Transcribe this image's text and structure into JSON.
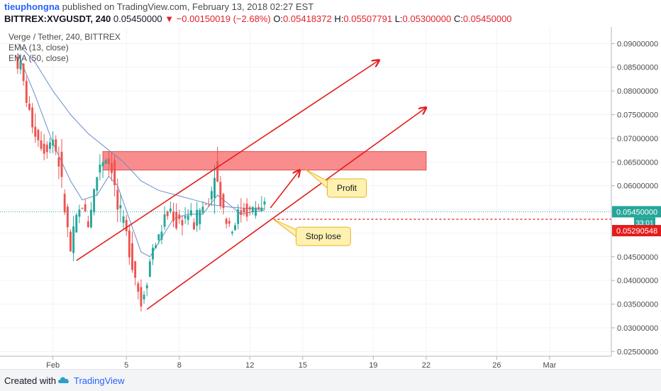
{
  "header": {
    "author": "tieuphongna",
    "published_text": "published on TradingView.com, February 13, 2018 02:27 EST",
    "symbol": "BITTREX:XVGUSDT, 240",
    "last": "0.05450000",
    "change_icon": "triangle-down-icon",
    "change": "−0.00150019 (−2.68%)",
    "o_label": "O:",
    "o_value": "0.05418372",
    "h_label": "H:",
    "h_value": "0.05507791",
    "l_label": "L:",
    "l_value": "0.05300000",
    "c_label": "C:",
    "c_value": "0.05450000"
  },
  "legend": {
    "title": "Verge / Tether, 240, BITTREX",
    "ema13": "EMA (13, close)",
    "ema50": "EMA (50, close)"
  },
  "price_tags": {
    "last": "0.05450000",
    "countdown": "33:01",
    "stop": "0.05290548"
  },
  "annotations": {
    "profit": "Profit",
    "stop": "Stop lose"
  },
  "footer": {
    "created": "Created with",
    "brand": "TradingView",
    "logo_icon": "tradingview-cloud-icon"
  },
  "colors": {
    "up": "#26a69a",
    "down": "#ef5350",
    "trend": "#e51b1b",
    "zone": "#f87878",
    "ema": "#6b8fc7",
    "note_bg": "#fff1b0",
    "note_border": "#e6b325"
  },
  "chart_data": {
    "type": "candlestick",
    "symbol": "BITTREX:XVGUSDT",
    "interval": "240",
    "ylim": [
      0.024,
      0.0935
    ],
    "yticks": [
      0.025,
      0.03,
      0.035,
      0.04,
      0.045,
      0.05,
      0.055,
      0.06,
      0.065,
      0.07,
      0.075,
      0.08,
      0.085,
      0.09
    ],
    "ytick_labels": [
      "0.02500000",
      "0.03000000",
      "0.03500000",
      "0.04000000",
      "0.04500000",
      "0.05000000",
      "0.05500000",
      "0.06000000",
      "0.06500000",
      "0.07000000",
      "0.07500000",
      "0.08000000",
      "0.08500000",
      "0.09000000"
    ],
    "xlim": [
      -6,
      202
    ],
    "xticks": [
      {
        "bar": 12,
        "label": "Feb"
      },
      {
        "bar": 37,
        "label": "5"
      },
      {
        "bar": 55,
        "label": "8"
      },
      {
        "bar": 79,
        "label": "12"
      },
      {
        "bar": 97,
        "label": "15"
      },
      {
        "bar": 121,
        "label": "19"
      },
      {
        "bar": 139,
        "label": "22"
      },
      {
        "bar": 163,
        "label": "26"
      },
      {
        "bar": 181,
        "label": "Mar"
      }
    ],
    "key_points": [
      [
        0,
        0.087
      ],
      [
        2,
        0.085
      ],
      [
        5,
        0.075
      ],
      [
        8,
        0.07
      ],
      [
        10,
        0.068
      ],
      [
        13,
        0.07
      ],
      [
        15,
        0.065
      ],
      [
        17,
        0.055
      ],
      [
        19,
        0.046
      ],
      [
        21,
        0.053
      ],
      [
        23,
        0.056
      ],
      [
        25,
        0.052
      ],
      [
        27,
        0.059
      ],
      [
        29,
        0.065
      ],
      [
        31,
        0.066
      ],
      [
        33,
        0.064
      ],
      [
        35,
        0.055
      ],
      [
        37,
        0.052
      ],
      [
        39,
        0.047
      ],
      [
        41,
        0.041
      ],
      [
        43,
        0.035
      ],
      [
        45,
        0.041
      ],
      [
        47,
        0.047
      ],
      [
        49,
        0.049
      ],
      [
        51,
        0.053
      ],
      [
        53,
        0.055
      ],
      [
        55,
        0.052
      ],
      [
        57,
        0.053
      ],
      [
        59,
        0.054
      ],
      [
        61,
        0.052
      ],
      [
        63,
        0.055
      ],
      [
        65,
        0.056
      ],
      [
        67,
        0.059
      ],
      [
        68,
        0.064
      ],
      [
        70,
        0.057
      ],
      [
        72,
        0.053
      ],
      [
        74,
        0.051
      ],
      [
        76,
        0.054
      ],
      [
        78,
        0.055
      ],
      [
        80,
        0.0545
      ],
      [
        82,
        0.0555
      ],
      [
        84,
        0.0545
      ]
    ],
    "ema": [
      {
        "name": "EMA (13, close)",
        "points": [
          [
            0,
            0.088
          ],
          [
            6,
            0.079
          ],
          [
            12,
            0.069
          ],
          [
            18,
            0.061
          ],
          [
            22,
            0.057
          ],
          [
            27,
            0.058
          ],
          [
            31,
            0.062
          ],
          [
            34,
            0.06
          ],
          [
            38,
            0.053
          ],
          [
            42,
            0.046
          ],
          [
            45,
            0.045
          ],
          [
            49,
            0.049
          ],
          [
            53,
            0.053
          ],
          [
            58,
            0.054
          ],
          [
            63,
            0.054
          ],
          [
            68,
            0.058
          ],
          [
            72,
            0.056
          ],
          [
            76,
            0.054
          ],
          [
            80,
            0.0545
          ],
          [
            84,
            0.0548
          ]
        ]
      },
      {
        "name": "EMA (50, close)",
        "points": [
          [
            0,
            0.09
          ],
          [
            6,
            0.086
          ],
          [
            12,
            0.08
          ],
          [
            18,
            0.075
          ],
          [
            24,
            0.071
          ],
          [
            30,
            0.068
          ],
          [
            36,
            0.065
          ],
          [
            42,
            0.061
          ],
          [
            48,
            0.059
          ],
          [
            54,
            0.058
          ],
          [
            60,
            0.057
          ],
          [
            66,
            0.056
          ],
          [
            72,
            0.0555
          ],
          [
            78,
            0.0552
          ],
          [
            84,
            0.0551
          ]
        ]
      }
    ],
    "zone": {
      "x1": 29,
      "x2": 139,
      "y1": 0.0633,
      "y2": 0.0672
    },
    "trendlines": [
      {
        "from": [
          20,
          0.0442
        ],
        "to": [
          123,
          0.0865
        ],
        "arrow": true
      },
      {
        "from": [
          44,
          0.0339
        ],
        "to": [
          139,
          0.0765
        ],
        "arrow": true
      },
      {
        "from": [
          86,
          0.0553
        ],
        "to": [
          96,
          0.0633
        ],
        "arrow": true
      }
    ],
    "last_price": 0.0545,
    "stop_level": 0.05290548,
    "callouts": [
      {
        "text_key": "profit",
        "anchor": [
          98,
          0.0634
        ],
        "box": [
          112,
          0.0595
        ]
      },
      {
        "text_key": "stop",
        "anchor": [
          87,
          0.0529
        ],
        "box": [
          104,
          0.0493
        ]
      }
    ]
  }
}
